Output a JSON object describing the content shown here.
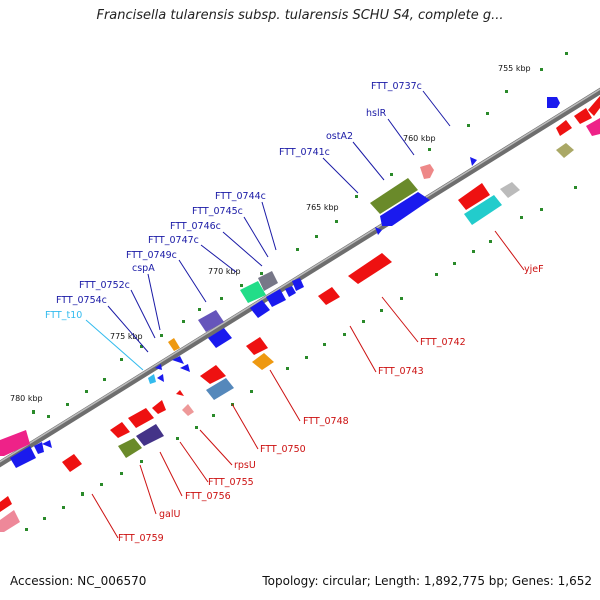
{
  "title": "Francisella tularensis subsp. tularensis SCHU S4, complete g...",
  "footer": {
    "accession": "Accession: NC_006570",
    "summary": "Topology: circular; Length: 1,892,775 bp; Genes: 1,652"
  },
  "scale_labels": [
    "755 kbp",
    "760 kbp",
    "765 kbp",
    "770 kbp",
    "775 kbp",
    "780 kbp"
  ],
  "genes_upper": [
    "FTT_0737c",
    "hslR",
    "ostA2",
    "FTT_0741c",
    "FTT_0744c",
    "FTT_0745c",
    "FTT_0746c",
    "FTT_0747c",
    "FTT_0749c",
    "cspA",
    "FTT_0752c",
    "FTT_0754c",
    "FTT_t10"
  ],
  "genes_lower": [
    "yjeF",
    "FTT_0742",
    "FTT_0743",
    "FTT_0748",
    "FTT_0750",
    "rpsU",
    "FTT_0755",
    "FTT_0756",
    "galU",
    "FTT_0759"
  ],
  "colors": {
    "label_upper": "#1a1aa6",
    "label_lower": "#cc1111",
    "label_trna": "#33bbee",
    "backbone": "#888888",
    "tick": "#2a8a2a"
  }
}
